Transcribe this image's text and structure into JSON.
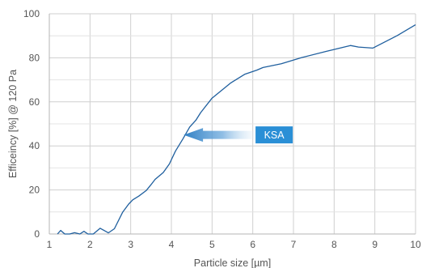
{
  "chart_data": {
    "type": "line",
    "xlabel": "Particle size [µm]",
    "ylabel": "Efficeincy [%] @ 120 Pa",
    "xlim": [
      1,
      10
    ],
    "ylim": [
      0,
      100
    ],
    "x_ticks": [
      "1",
      "2",
      "3",
      "4",
      "5",
      "6",
      "7",
      "8",
      "9",
      "10"
    ],
    "y_ticks": [
      "0",
      "20",
      "40",
      "60",
      "80",
      "100"
    ],
    "grid": true,
    "line_color": "#1f5f9e",
    "series": [
      {
        "x": [
          1.2,
          1.28,
          1.38,
          1.5,
          1.62,
          1.75,
          1.85,
          1.95,
          2.08,
          2.25,
          2.45,
          2.6,
          2.8,
          2.95,
          3.05,
          3.2,
          3.38,
          3.5,
          3.6,
          3.8,
          3.95,
          4.1,
          4.28,
          4.45,
          4.6,
          4.72,
          5.0,
          5.45,
          5.8,
          6.1,
          6.25,
          6.7,
          7.2,
          7.8,
          8.4,
          8.6,
          8.95,
          9.55,
          10.0
        ],
        "y": [
          0,
          1.6,
          0,
          0,
          0.6,
          0,
          1.2,
          0,
          0,
          2.6,
          0.5,
          2.4,
          9.8,
          13.6,
          15.5,
          17.2,
          19.7,
          22.4,
          24.8,
          27.9,
          31.8,
          37.6,
          43.1,
          48.6,
          51.6,
          55.1,
          61.7,
          68.5,
          72.5,
          74.4,
          75.6,
          77.3,
          80.1,
          82.9,
          85.6,
          84.9,
          84.4,
          90.1,
          95.0
        ]
      }
    ],
    "annotations": [
      {
        "text": "KSA",
        "target_x": 4.3,
        "target_y": 45
      }
    ]
  }
}
